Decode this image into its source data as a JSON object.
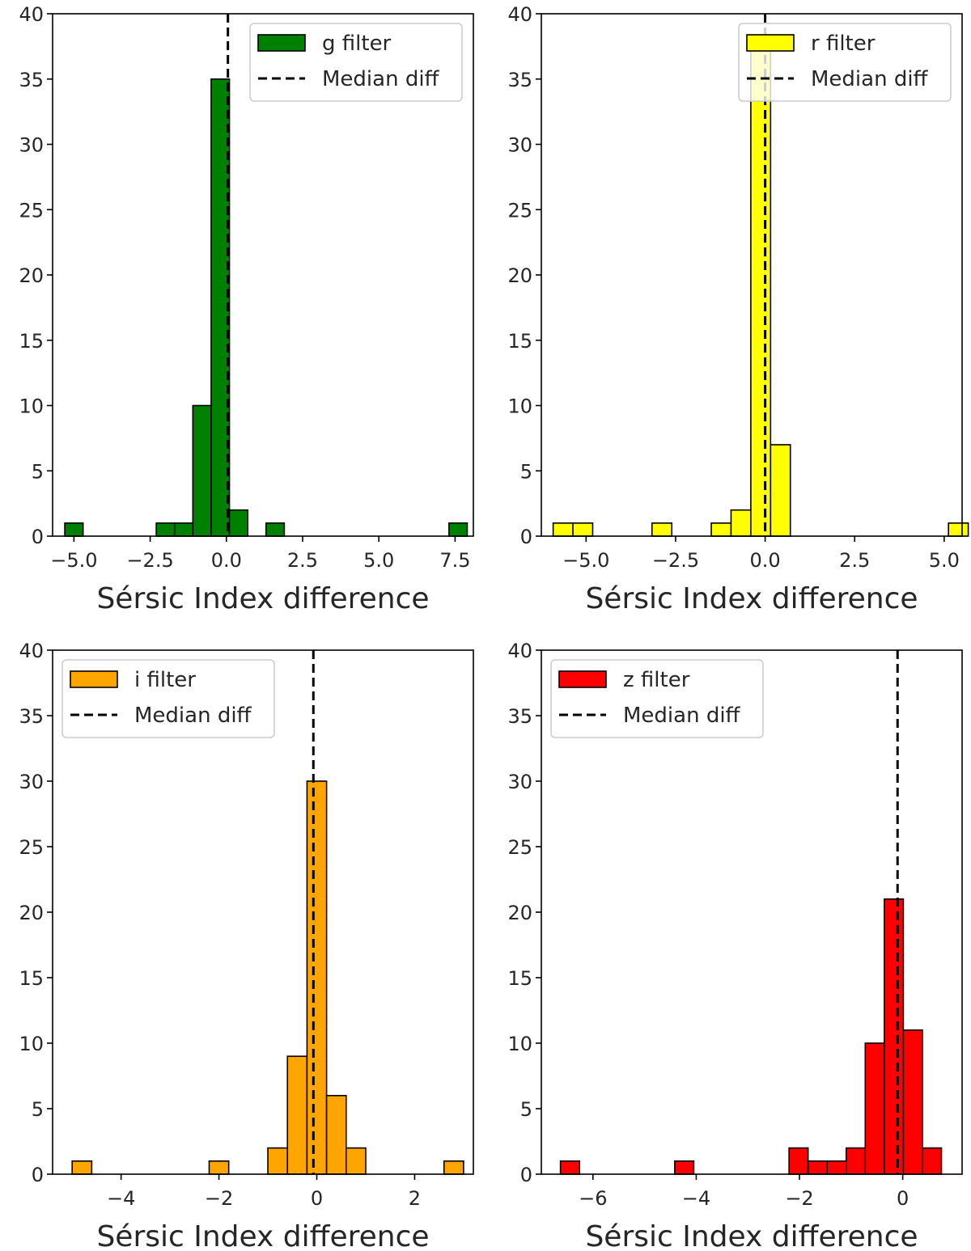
{
  "figure": {
    "type": "histogram-grid"
  },
  "chart_data": [
    {
      "type": "bar",
      "title": "",
      "xlabel": "Sérsic Index difference",
      "ylabel": "",
      "xlim": [
        -5.7,
        8.1
      ],
      "ylim": [
        0,
        40
      ],
      "xticks": [
        -5.0,
        -2.5,
        0.0,
        2.5,
        5.0,
        7.5
      ],
      "xtick_labels": [
        "−5.0",
        "−2.5",
        "0.0",
        "2.5",
        "5.0",
        "7.5"
      ],
      "yticks": [
        0,
        5,
        10,
        15,
        20,
        25,
        30,
        35,
        40
      ],
      "yticks_labels": [
        "0",
        "5",
        "10",
        "15",
        "20",
        "25",
        "30",
        "35",
        "40"
      ],
      "bin_start": -5.3,
      "bin_width": 0.6,
      "counts": [
        1,
        0,
        0,
        0,
        0,
        1,
        1,
        10,
        35,
        2,
        0,
        1,
        0,
        0,
        0,
        0,
        0,
        0,
        0,
        0,
        0,
        1
      ],
      "series_name": "g filter",
      "color": "#008000",
      "median_diff": 0.05,
      "median_label": "Median diff",
      "legend_position": "top-right"
    },
    {
      "type": "bar",
      "title": "",
      "xlabel": "Sérsic Index difference",
      "ylabel": "",
      "xlim": [
        -6.25,
        5.5
      ],
      "ylim": [
        0,
        40
      ],
      "xticks": [
        -5.0,
        -2.5,
        0.0,
        2.5,
        5.0
      ],
      "xtick_labels": [
        "−5.0",
        "−2.5",
        "0.0",
        "2.5",
        "5.0"
      ],
      "yticks": [
        0,
        5,
        10,
        15,
        20,
        25,
        30,
        35,
        40
      ],
      "yticks_labels": [
        "0",
        "5",
        "10",
        "15",
        "20",
        "25",
        "30",
        "35",
        "40"
      ],
      "bin_start": -5.92,
      "bin_width": 0.552,
      "counts": [
        1,
        1,
        0,
        0,
        0,
        1,
        0,
        0,
        1,
        2,
        38,
        7,
        0,
        0,
        0,
        0,
        0,
        0,
        0,
        0,
        1
      ],
      "series_name": "r filter",
      "color": "#ffff00",
      "median_diff": 0.0,
      "median_label": "Median diff",
      "legend_position": "top-right"
    },
    {
      "type": "bar",
      "title": "",
      "xlabel": "Sérsic Index difference",
      "ylabel": "",
      "xlim": [
        -5.4,
        3.2
      ],
      "ylim": [
        0,
        40
      ],
      "xticks": [
        -4,
        -2,
        0,
        2
      ],
      "xtick_labels": [
        "−4",
        "−2",
        "0",
        "2"
      ],
      "yticks": [
        0,
        5,
        10,
        15,
        20,
        25,
        30,
        35,
        40
      ],
      "yticks_labels": [
        "0",
        "5",
        "10",
        "15",
        "20",
        "25",
        "30",
        "35",
        "40"
      ],
      "bin_start": -5.0,
      "bin_width": 0.4,
      "counts": [
        1,
        0,
        0,
        0,
        0,
        0,
        0,
        1,
        0,
        0,
        2,
        9,
        30,
        6,
        2,
        0,
        0,
        0,
        0,
        1
      ],
      "series_name": "i filter",
      "color": "#ffa500",
      "median_diff": -0.07,
      "median_label": "Median diff",
      "legend_position": "top-left"
    },
    {
      "type": "bar",
      "title": "",
      "xlabel": "Sérsic Index difference",
      "ylabel": "",
      "xlim": [
        -7.0,
        1.15
      ],
      "ylim": [
        0,
        40
      ],
      "xticks": [
        -6,
        -4,
        -2,
        0
      ],
      "xtick_labels": [
        "−6",
        "−4",
        "−2",
        "0"
      ],
      "yticks": [
        0,
        5,
        10,
        15,
        20,
        25,
        30,
        35,
        40
      ],
      "yticks_labels": [
        "0",
        "5",
        "10",
        "15",
        "20",
        "25",
        "30",
        "35",
        "40"
      ],
      "bin_start": -6.63,
      "bin_width": 0.369,
      "counts": [
        1,
        0,
        0,
        0,
        0,
        0,
        1,
        0,
        0,
        0,
        0,
        0,
        2,
        1,
        1,
        2,
        10,
        21,
        11,
        2
      ],
      "series_name": "z filter",
      "color": "#ff0000",
      "median_diff": -0.1,
      "median_label": "Median diff",
      "legend_position": "top-left"
    }
  ]
}
